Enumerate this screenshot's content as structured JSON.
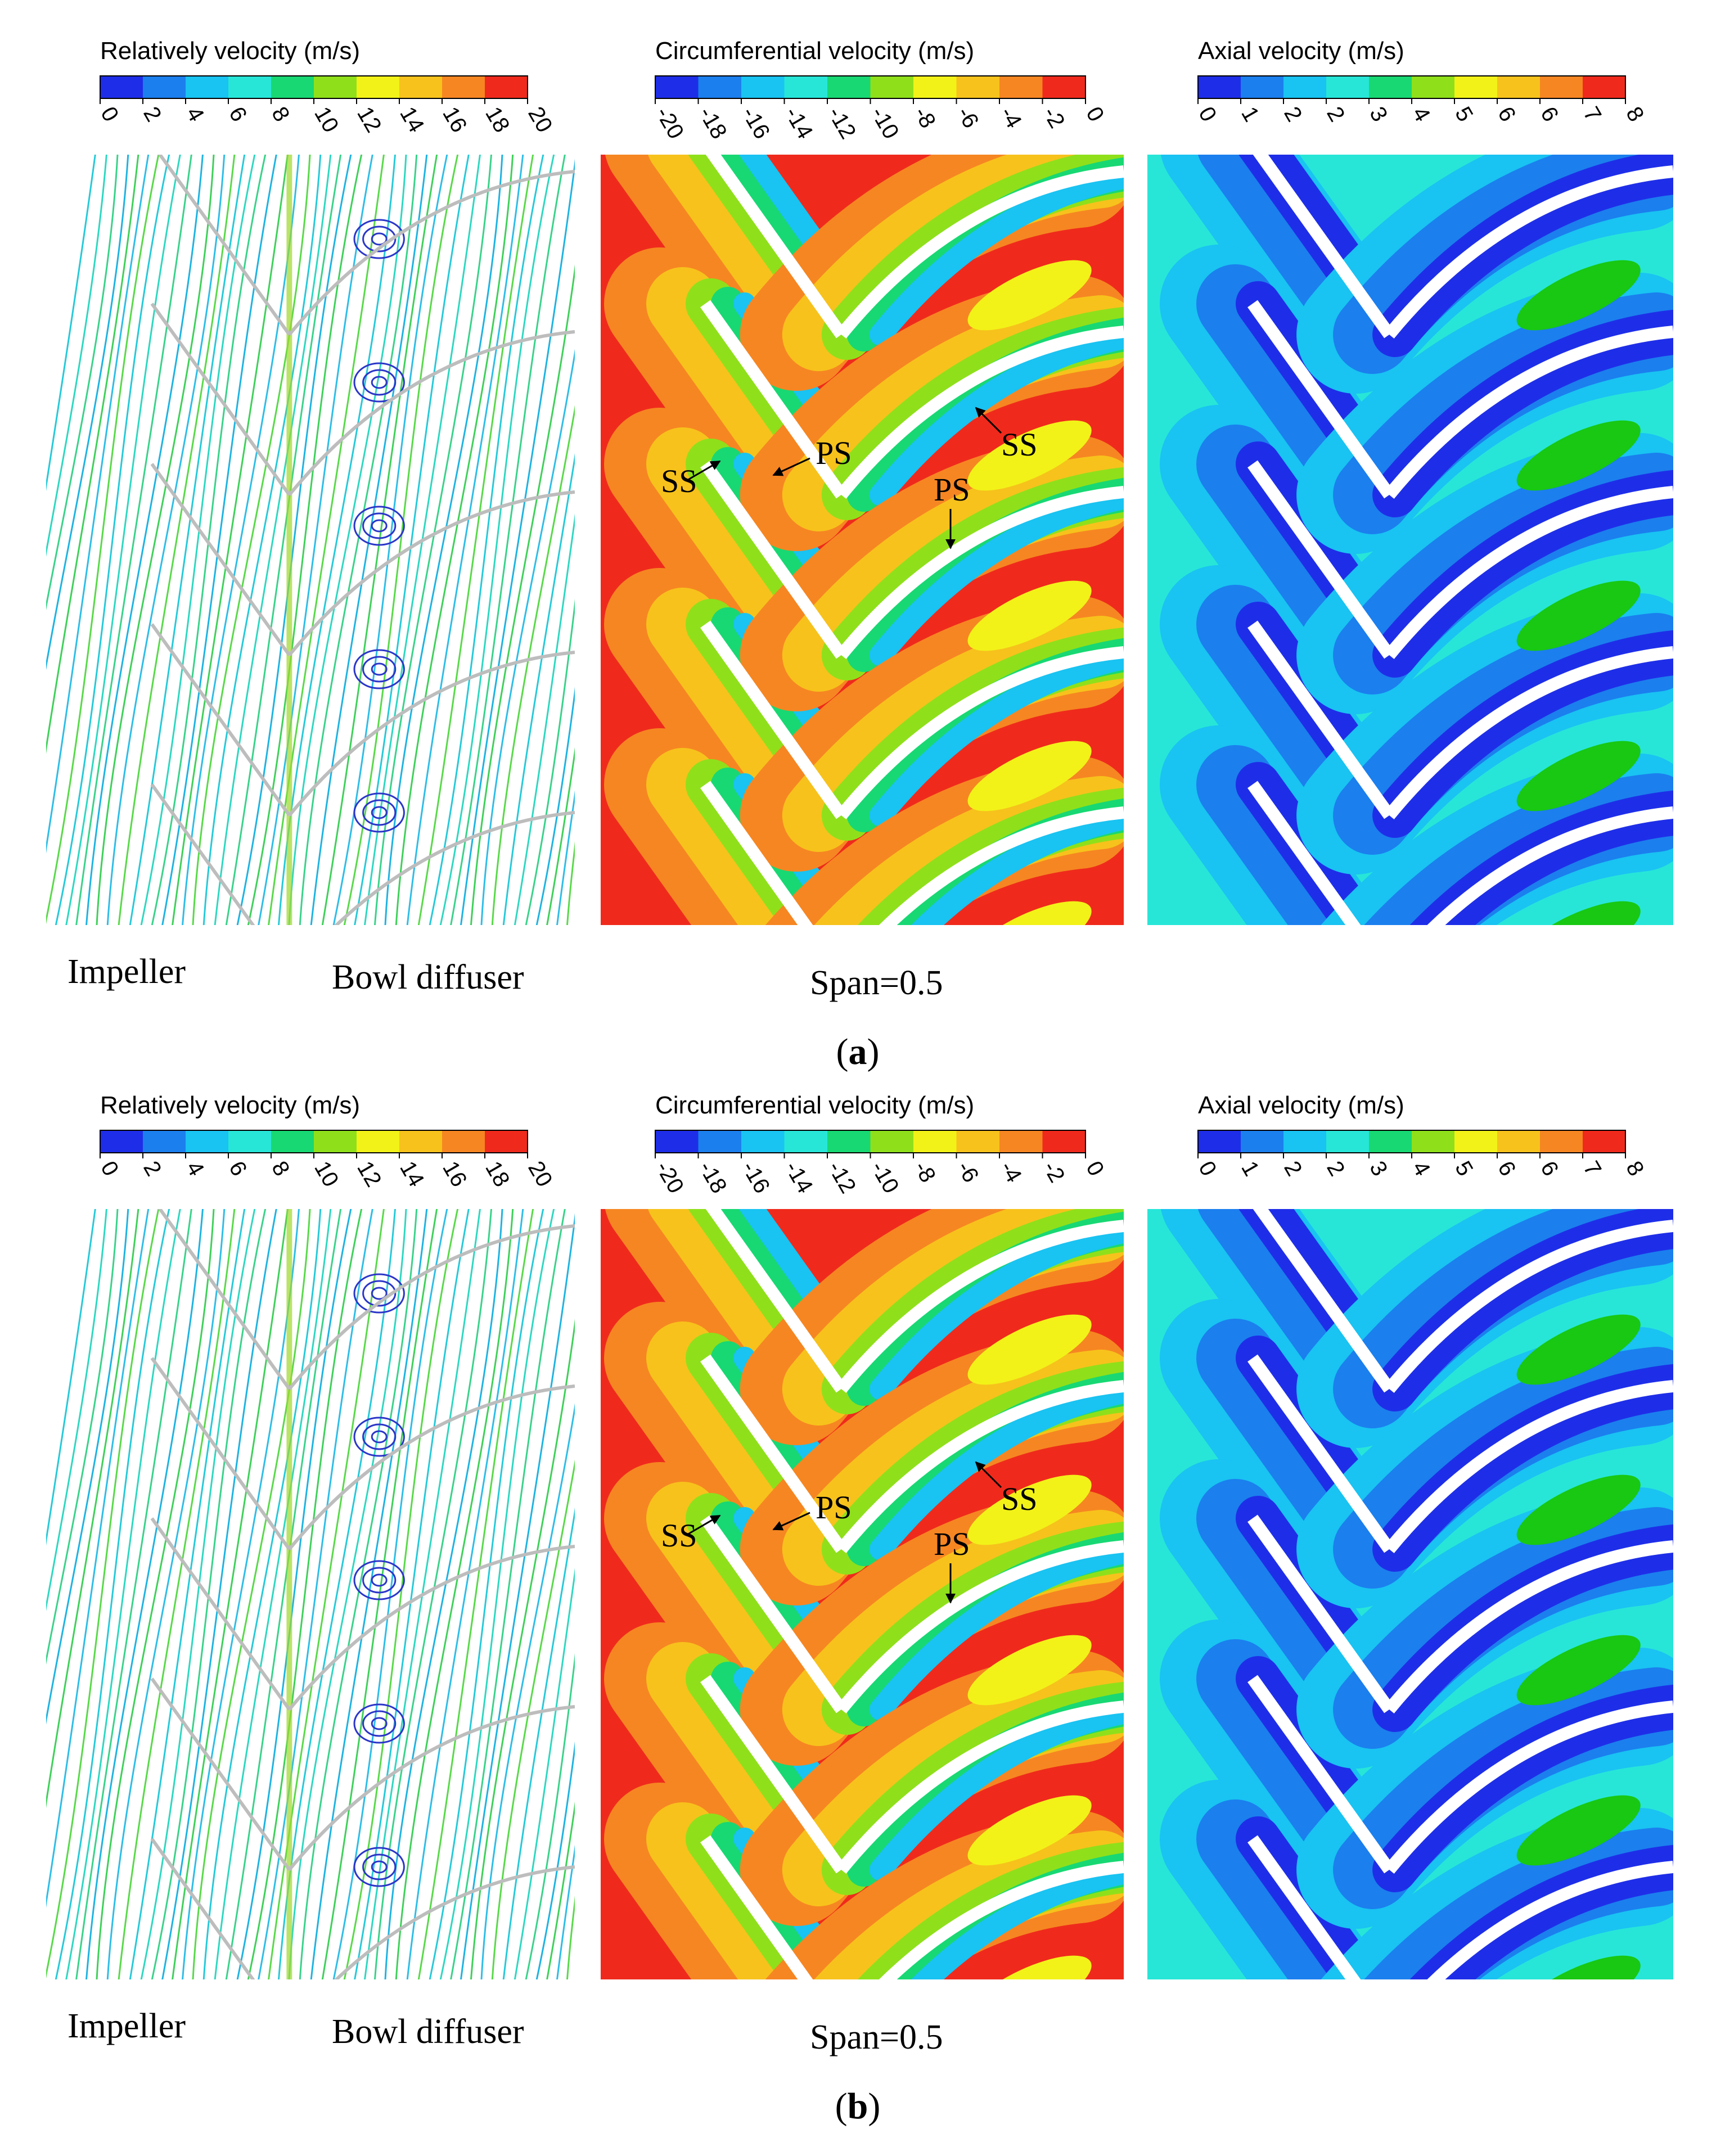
{
  "panels": [
    {
      "id": "a",
      "tag": "(a)",
      "tag_letter": "a",
      "left_label": "Impeller",
      "right_label": "Bowl diffuser",
      "span_label": "Span=0.5",
      "colorbars": [
        {
          "title": "Relatively velocity (m/s)",
          "ticks": [
            "0",
            "2",
            "4",
            "6",
            "8",
            "10",
            "12",
            "14",
            "16",
            "18",
            "20"
          ]
        },
        {
          "title": "Circumferential velocity (m/s)",
          "ticks": [
            "-20",
            "-18",
            "-16",
            "-14",
            "-12",
            "-10",
            "-8",
            "-6",
            "-4",
            "-2",
            "0"
          ]
        },
        {
          "title": "Axial velocity (m/s)",
          "ticks": [
            "0",
            "1",
            "2",
            "2",
            "3",
            "4",
            "5",
            "6",
            "6",
            "7",
            "8"
          ]
        }
      ],
      "annotations": [
        "SS",
        "PS",
        "SS",
        "PS"
      ]
    },
    {
      "id": "b",
      "tag": "(b)",
      "tag_letter": "b",
      "left_label": "Impeller",
      "right_label": "Bowl diffuser",
      "span_label": "Span=0.5",
      "colorbars": [
        {
          "title": "Relatively velocity (m/s)",
          "ticks": [
            "0",
            "2",
            "4",
            "6",
            "8",
            "10",
            "12",
            "14",
            "16",
            "18",
            "20"
          ]
        },
        {
          "title": "Circumferential velocity (m/s)",
          "ticks": [
            "-20",
            "-18",
            "-16",
            "-14",
            "-12",
            "-10",
            "-8",
            "-6",
            "-4",
            "-2",
            "0"
          ]
        },
        {
          "title": "Axial velocity (m/s)",
          "ticks": [
            "0",
            "1",
            "2",
            "2",
            "3",
            "4",
            "5",
            "6",
            "6",
            "7",
            "8"
          ]
        }
      ],
      "annotations": [
        "SS",
        "PS",
        "SS",
        "PS"
      ]
    }
  ],
  "colors": {
    "rainbow": [
      "#1e2ee8",
      "#1b7fee",
      "#19c3f2",
      "#27e6d8",
      "#18d873",
      "#18c812",
      "#8fe01a",
      "#f2f218",
      "#f7c21c",
      "#f68622",
      "#ef2a1c"
    ],
    "blade_outline": "#bdbdbd"
  }
}
